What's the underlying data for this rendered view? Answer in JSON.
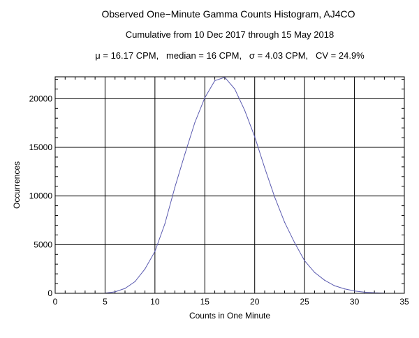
{
  "chart_data": {
    "type": "line",
    "title": "Observed One−Minute Gamma Counts Histogram, AJ4CO",
    "subtitle": "Cumulative from 10 Dec 2017 through 15 May 2018",
    "stats_line": "μ = 16.17 CPM,   median = 16 CPM,   σ = 4.03 CPM,   CV = 24.9%",
    "xlabel": "Counts in One Minute",
    "ylabel": "Occurrences",
    "xlim": [
      0,
      35
    ],
    "ylim": [
      0,
      22250
    ],
    "xticks": [
      0,
      5,
      10,
      15,
      20,
      25,
      30,
      35
    ],
    "yticks": [
      0,
      5000,
      10000,
      15000,
      20000
    ],
    "grid": true,
    "line_color": "#5b5bb0",
    "x": [
      5,
      6,
      7,
      8,
      9,
      10,
      11,
      12,
      13,
      14,
      15,
      16,
      17,
      18,
      19,
      20,
      21,
      22,
      23,
      24,
      25,
      26,
      27,
      28,
      29,
      30,
      31,
      32,
      33
    ],
    "values": [
      20,
      150,
      500,
      1200,
      2500,
      4300,
      7150,
      10900,
      14300,
      17550,
      20100,
      21850,
      22200,
      21000,
      18800,
      16100,
      12900,
      9900,
      7300,
      5200,
      3350,
      2150,
      1350,
      780,
      460,
      240,
      120,
      50,
      20
    ]
  }
}
